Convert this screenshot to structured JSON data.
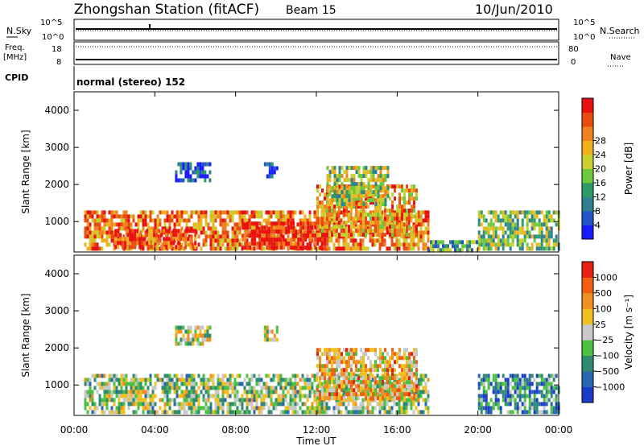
{
  "header": {
    "station": "Zhongshan Station (fitACF)",
    "beam": "Beam 15",
    "date": "10/Jun/2010"
  },
  "summary": {
    "nsky_label": "N.Sky",
    "nsky_ticks": [
      "10^5",
      "10^0"
    ],
    "nsearch_label": "N.Search",
    "nsearch_ticks": [
      "10^5",
      "10^0"
    ],
    "freq_label": "Freq.",
    "freq_unit": "[MHz]",
    "freq_ticks": [
      "18",
      "8"
    ],
    "nave_label": "Nave",
    "nave_ticks": [
      "80",
      "0"
    ],
    "cpid_label": "CPID",
    "cpid_text": "normal (stereo) 152"
  },
  "chart_data": [
    {
      "type": "heatmap",
      "title": "",
      "xlabel": "Time UT",
      "ylabel": "Slant Range [km]",
      "x_ticks": [
        "00:00",
        "04:00",
        "08:00",
        "12:00",
        "16:00",
        "20:00",
        "00:00"
      ],
      "x_range_hours": [
        0,
        24
      ],
      "y_ticks": [
        1000,
        2000,
        3000,
        4000
      ],
      "ylim": [
        180,
        4500
      ],
      "colorbar": {
        "label": "Power [dB]",
        "ticks": [
          "4",
          "8",
          "12",
          "16",
          "20",
          "24",
          "28"
        ],
        "colors": [
          "#1a1aff",
          "#2255c8",
          "#2e8090",
          "#2e9a6a",
          "#6cc83c",
          "#c8d030",
          "#f0b020",
          "#f08020",
          "#e84a10",
          "#e81010"
        ]
      },
      "regions": [
        {
          "t0": 0.5,
          "t1": 17.5,
          "r0": 250,
          "r1": 1300,
          "level": 0.75
        },
        {
          "t0": 8.3,
          "t1": 12.5,
          "r0": 300,
          "r1": 1000,
          "level": 0.95
        },
        {
          "t0": 2.0,
          "t1": 6.0,
          "r0": 300,
          "r1": 800,
          "level": 0.9
        },
        {
          "t0": 12.0,
          "t1": 17.0,
          "r0": 600,
          "r1": 2000,
          "level": 0.7
        },
        {
          "t0": 5.0,
          "t1": 6.7,
          "r0": 2100,
          "r1": 2600,
          "level": 0.12
        },
        {
          "t0": 9.4,
          "t1": 10.0,
          "r0": 2200,
          "r1": 2600,
          "level": 0.12
        },
        {
          "t0": 12.5,
          "t1": 15.5,
          "r0": 1500,
          "r1": 2500,
          "level": 0.5
        },
        {
          "t0": 20.0,
          "t1": 24.0,
          "r0": 250,
          "r1": 1300,
          "level": 0.45
        },
        {
          "t0": 17.5,
          "t1": 20.0,
          "r0": 250,
          "r1": 500,
          "level": 0.35
        }
      ]
    },
    {
      "type": "heatmap",
      "title": "",
      "xlabel": "Time UT",
      "ylabel": "Slant Range [km]",
      "x_ticks": [
        "00:00",
        "04:00",
        "08:00",
        "12:00",
        "16:00",
        "20:00",
        "00:00"
      ],
      "x_range_hours": [
        0,
        24
      ],
      "y_ticks": [
        1000,
        2000,
        3000,
        4000
      ],
      "ylim": [
        180,
        4500
      ],
      "colorbar": {
        "label": "Velocity [m s⁻¹]",
        "ticks": [
          "1000",
          "500",
          "100",
          "25",
          "−25",
          "−100",
          "−500",
          "−1000"
        ],
        "colors": [
          "#1a3ac8",
          "#2a66b0",
          "#2e8a70",
          "#4cc040",
          "#c8c8c8",
          "#f0c020",
          "#f09020",
          "#f06010",
          "#e82010"
        ]
      },
      "regions": [
        {
          "t0": 0.5,
          "t1": 17.5,
          "r0": 250,
          "r1": 1300,
          "level": 0.45
        },
        {
          "t0": 12.0,
          "t1": 17.0,
          "r0": 600,
          "r1": 2000,
          "level": 0.65
        },
        {
          "t0": 5.0,
          "t1": 6.7,
          "r0": 2100,
          "r1": 2600,
          "level": 0.5
        },
        {
          "t0": 9.4,
          "t1": 10.0,
          "r0": 2200,
          "r1": 2600,
          "level": 0.5
        },
        {
          "t0": 20.0,
          "t1": 24.0,
          "r0": 250,
          "r1": 1300,
          "level": 0.25
        }
      ]
    }
  ]
}
